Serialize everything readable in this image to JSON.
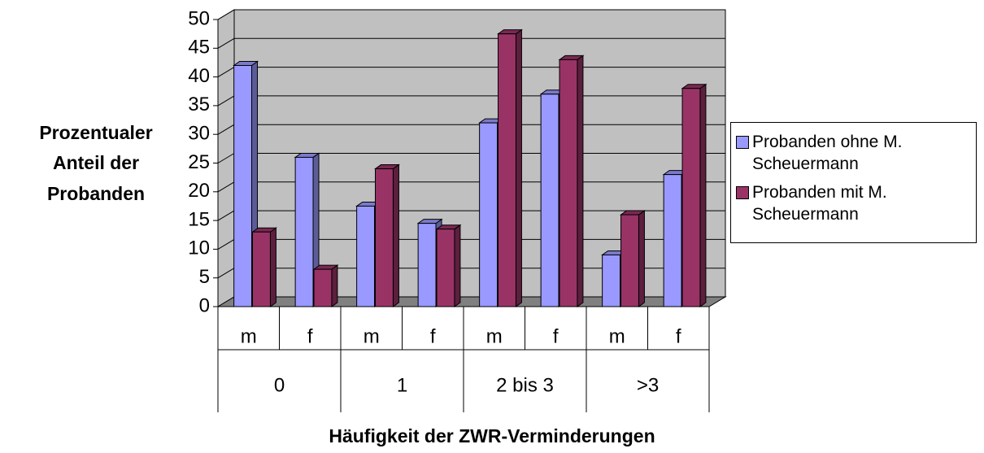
{
  "chart_data": {
    "type": "bar3d",
    "y_label_lines": [
      "Prozentualer",
      "Anteil der",
      "Probanden"
    ],
    "x_label": "Häufigkeit der ZWR-Verminderungen",
    "categories": [
      "m",
      "f",
      "m",
      "f",
      "m",
      "f",
      "m",
      "f"
    ],
    "groups": [
      "0",
      "1",
      "2 bis 3",
      ">3"
    ],
    "series": [
      {
        "name": "Probanden ohne M. Scheuermann",
        "color": "#9999ff",
        "values": [
          42,
          26,
          17.5,
          14.5,
          32,
          37,
          9,
          23
        ]
      },
      {
        "name": "Probanden mit M. Scheuermann",
        "color": "#993366",
        "values": [
          13,
          6.5,
          24,
          13.5,
          47.5,
          43,
          16,
          38
        ]
      }
    ],
    "ylim": [
      0,
      50
    ],
    "yticks": [
      0,
      5,
      10,
      15,
      20,
      25,
      30,
      35,
      40,
      45,
      50
    ],
    "grid": true
  }
}
